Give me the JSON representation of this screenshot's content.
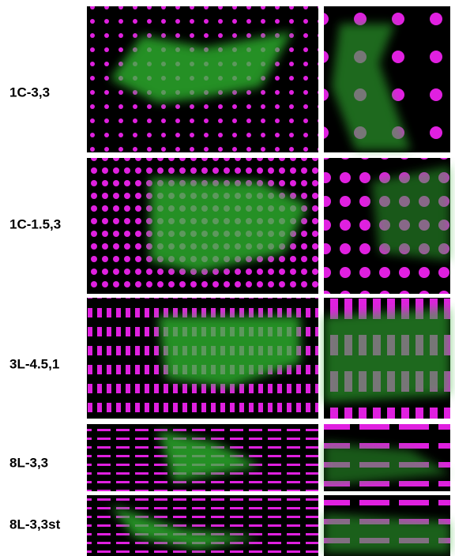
{
  "rows": [
    {
      "label": "1C-3,3"
    },
    {
      "label": "1C-1.5,3"
    },
    {
      "label": "3L-4.5,1"
    },
    {
      "label": "8L-3,3"
    },
    {
      "label": "8L-3,3st"
    }
  ]
}
